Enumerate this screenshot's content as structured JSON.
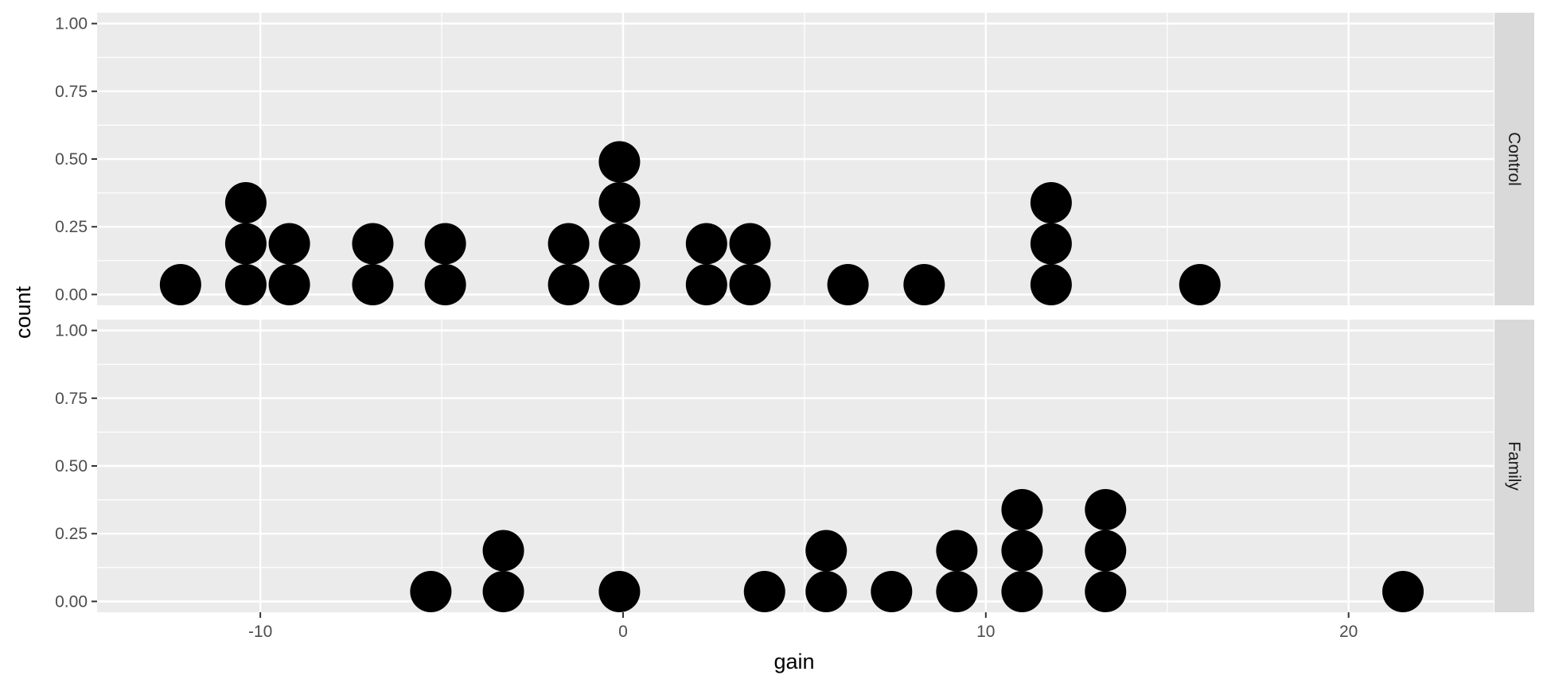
{
  "chart_data": {
    "type": "dotplot",
    "xlabel": "gain",
    "ylabel": "count",
    "xlim": [
      -14.5,
      24
    ],
    "x_ticks": [
      -10,
      0,
      10,
      20
    ],
    "x_tick_labels": [
      "-10",
      "0",
      "10",
      "20"
    ],
    "ylim": [
      -0.04,
      1.04
    ],
    "y_ticks": [
      0,
      0.25,
      0.5,
      0.75,
      1
    ],
    "y_tick_labels": [
      "0.00",
      "0.25",
      "0.50",
      "0.75",
      "1.00"
    ],
    "grid": true,
    "panels": [
      {
        "label": "Control",
        "stacks": [
          {
            "x": -12.2,
            "count": 1
          },
          {
            "x": -10.4,
            "count": 3
          },
          {
            "x": -9.2,
            "count": 2
          },
          {
            "x": -6.9,
            "count": 2
          },
          {
            "x": -4.9,
            "count": 2
          },
          {
            "x": -1.5,
            "count": 2
          },
          {
            "x": -0.1,
            "count": 4
          },
          {
            "x": 2.3,
            "count": 2
          },
          {
            "x": 3.5,
            "count": 2
          },
          {
            "x": 6.2,
            "count": 1
          },
          {
            "x": 8.3,
            "count": 1
          },
          {
            "x": 11.8,
            "count": 3
          },
          {
            "x": 15.9,
            "count": 1
          }
        ]
      },
      {
        "label": "Family",
        "stacks": [
          {
            "x": -5.3,
            "count": 1
          },
          {
            "x": -3.3,
            "count": 2
          },
          {
            "x": -0.1,
            "count": 1
          },
          {
            "x": 3.9,
            "count": 1
          },
          {
            "x": 5.6,
            "count": 2
          },
          {
            "x": 7.4,
            "count": 1
          },
          {
            "x": 9.2,
            "count": 2
          },
          {
            "x": 11.0,
            "count": 3
          },
          {
            "x": 13.3,
            "count": 3
          },
          {
            "x": 21.5,
            "count": 1
          }
        ]
      }
    ]
  }
}
